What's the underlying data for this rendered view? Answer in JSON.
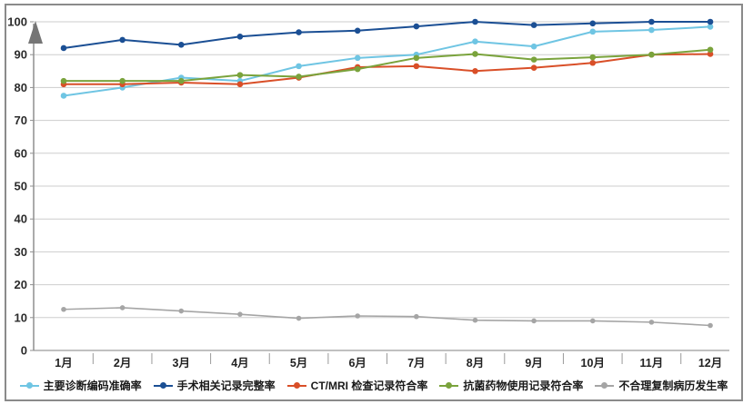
{
  "chart_data": {
    "type": "line",
    "title": "",
    "xlabel": "",
    "ylabel": "",
    "categories": [
      "1月",
      "2月",
      "3月",
      "4月",
      "5月",
      "6月",
      "7月",
      "8月",
      "9月",
      "10月",
      "11月",
      "12月"
    ],
    "series": [
      {
        "name": "主要诊断编码准确率",
        "color": "#6fc5e3",
        "values": [
          77.5,
          80,
          83,
          82,
          86.5,
          89,
          90,
          94,
          92.5,
          97,
          97.5,
          98.5
        ]
      },
      {
        "name": "手术相关记录完整率",
        "color": "#1b4f94",
        "values": [
          92,
          94.5,
          93,
          95.5,
          96.8,
          97.3,
          98.6,
          100,
          99,
          99.5,
          100,
          100
        ]
      },
      {
        "name": "CT/MRI 检查记录符合率",
        "color": "#d94f28",
        "values": [
          81,
          81,
          81.5,
          81,
          83,
          86.2,
          86.5,
          85,
          86,
          87.5,
          90,
          90.2
        ]
      },
      {
        "name": "抗菌药物使用记录符合率",
        "color": "#7aa33c",
        "values": [
          82,
          82,
          82,
          83.8,
          83.3,
          85.6,
          89,
          90.2,
          88.5,
          89.2,
          90,
          91.5
        ]
      },
      {
        "name": "不合理复制病历发生率",
        "color": "#a5a5a5",
        "values": [
          12.5,
          13,
          12,
          11,
          9.8,
          10.5,
          10.3,
          9.2,
          9,
          9,
          8.6,
          7.6
        ]
      }
    ],
    "ylim": [
      0,
      100
    ],
    "yticks": [
      0,
      10,
      20,
      30,
      40,
      50,
      60,
      70,
      80,
      90,
      100
    ],
    "grid": "horizontal",
    "legend_position": "bottom",
    "axis_arrow": "up",
    "colors": {
      "gridline": "#cdcdcd",
      "axis": "#8f8f8f",
      "arrow": "#757575",
      "frame_border": "#8a8a8a"
    }
  }
}
